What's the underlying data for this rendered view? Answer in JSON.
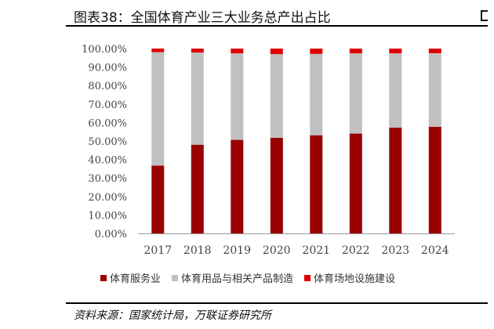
{
  "title": "图表38：全国体育产业三大业务总产出占比",
  "source": "资料来源：国家统计局，万联证券研究所",
  "colors": {
    "service": "#990000",
    "goods": "#c0c0c0",
    "facility": "#e00000"
  },
  "chart_data": {
    "type": "bar",
    "stacked": true,
    "categories": [
      "2017",
      "2018",
      "2019",
      "2020",
      "2021",
      "2022",
      "2023",
      "2024"
    ],
    "series": [
      {
        "name": "体育服务业",
        "color": "#990000",
        "values": [
          36.7,
          48.0,
          50.6,
          51.7,
          53.1,
          54.0,
          57.2,
          57.7
        ]
      },
      {
        "name": "体育用品与相关产品制造",
        "color": "#c0c0c0",
        "values": [
          61.4,
          49.9,
          46.8,
          45.3,
          44.0,
          43.4,
          40.2,
          39.8
        ]
      },
      {
        "name": "体育场地设施建设",
        "color": "#e00000",
        "values": [
          1.9,
          2.1,
          2.6,
          3.0,
          2.9,
          2.6,
          2.6,
          2.5
        ]
      }
    ],
    "yticks": [
      "0.00%",
      "10.00%",
      "20.00%",
      "30.00%",
      "40.00%",
      "50.00%",
      "60.00%",
      "70.00%",
      "80.00%",
      "90.00%",
      "100.00%"
    ],
    "ylim": [
      0,
      100
    ],
    "legend_position": "bottom",
    "grid": false
  }
}
